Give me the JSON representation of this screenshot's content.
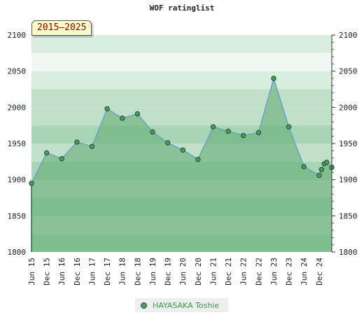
{
  "title": "WOF ratinglist",
  "period_badge": "2015–2025",
  "colors": {
    "line": "#6aa0c9",
    "marker_fill": "#4c9a62",
    "marker_stroke": "#1f4f2b",
    "area_fill": "#5ca86e",
    "legend_text": "#3a9d4f",
    "band_colors": [
      "#a8d5b5",
      "#c0e1c8",
      "#d9eedd",
      "#f0f8f1"
    ]
  },
  "legend": {
    "label": "HAYASAKA Toshie"
  },
  "chart_data": {
    "type": "area",
    "title": "WOF ratinglist",
    "ylim": [
      1800,
      2100
    ],
    "y_ticks": [
      1800,
      1850,
      1900,
      1950,
      2000,
      2050,
      2100
    ],
    "xlim": [
      2015.5,
      2025.42
    ],
    "x_tick_labels": [
      "Jun 15",
      "Dec 15",
      "Jun 16",
      "Dec 16",
      "Jun 17",
      "Dec 17",
      "Jun 18",
      "Dec 18",
      "Jun 19",
      "Dec 19",
      "Jun 20",
      "Dec 20",
      "Jun 21",
      "Dec 21",
      "Jun 22",
      "Dec 22",
      "Jun 23",
      "Dec 23",
      "Jun 24",
      "Dec 24"
    ],
    "x_tick_values": [
      2015.5,
      2016.0,
      2016.5,
      2017.0,
      2017.5,
      2018.0,
      2018.5,
      2019.0,
      2019.5,
      2020.0,
      2020.5,
      2021.0,
      2021.5,
      2022.0,
      2022.5,
      2023.0,
      2023.5,
      2024.0,
      2024.5,
      2025.0
    ],
    "grid": false,
    "legend_position": "bottom-center",
    "series": [
      {
        "name": "HAYASAKA Toshie",
        "x": [
          2015.5,
          2016.0,
          2016.5,
          2017.0,
          2017.5,
          2018.0,
          2018.5,
          2019.0,
          2019.5,
          2020.0,
          2020.5,
          2021.0,
          2021.5,
          2022.0,
          2022.5,
          2023.0,
          2023.5,
          2024.0,
          2024.5,
          2025.0,
          2025.08,
          2025.17,
          2025.25,
          2025.42
        ],
        "y": [
          1895,
          1937,
          1929,
          1952,
          1946,
          1998,
          1985,
          1991,
          1966,
          1951,
          1941,
          1928,
          1973,
          1967,
          1961,
          1965,
          2040,
          1973,
          1918,
          1906,
          1914,
          1922,
          1924,
          1917
        ]
      }
    ]
  }
}
